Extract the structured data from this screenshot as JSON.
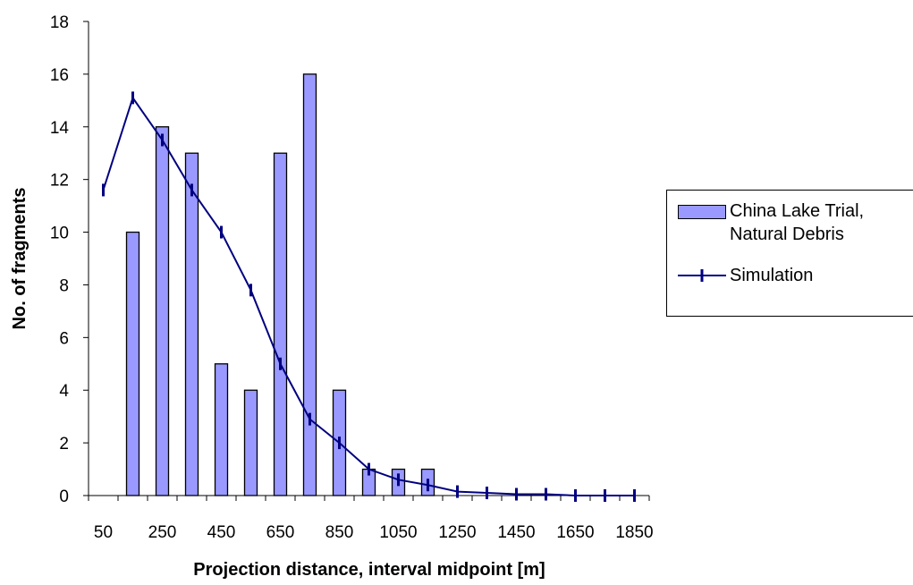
{
  "chart_data": {
    "type": "bar",
    "xlabel": "Projection distance, interval midpoint [m]",
    "ylabel": "No. of fragments",
    "ylim": [
      0,
      18
    ],
    "yticks": [
      0,
      2,
      4,
      6,
      8,
      10,
      12,
      14,
      16,
      18
    ],
    "categories": [
      50,
      150,
      250,
      350,
      450,
      550,
      650,
      750,
      850,
      950,
      1050,
      1150,
      1250,
      1350,
      1450,
      1550,
      1650,
      1750,
      1850
    ],
    "xtick_labels": [
      "50",
      "250",
      "450",
      "650",
      "850",
      "1050",
      "1250",
      "1450",
      "1650",
      "1850"
    ],
    "series": [
      {
        "name": "China Lake Trial, Natural Debris",
        "kind": "bar",
        "color": "#9999ff",
        "values": [
          0,
          10,
          14,
          13,
          5,
          4,
          13,
          16,
          4,
          1,
          1,
          1,
          0,
          0,
          0,
          0,
          0,
          0,
          0
        ]
      },
      {
        "name": "Simulation",
        "kind": "line",
        "color": "#000080",
        "values": [
          11.6,
          15.1,
          13.5,
          11.6,
          10.0,
          7.8,
          5.0,
          2.9,
          2.0,
          1.0,
          0.6,
          0.4,
          0.15,
          0.1,
          0.05,
          0.05,
          0.0,
          0.0,
          0.0
        ]
      }
    ],
    "legend": {
      "position": "right",
      "entries": [
        {
          "line1": "China Lake Trial,",
          "line2": "Natural Debris"
        },
        {
          "line1": "Simulation"
        }
      ]
    }
  }
}
